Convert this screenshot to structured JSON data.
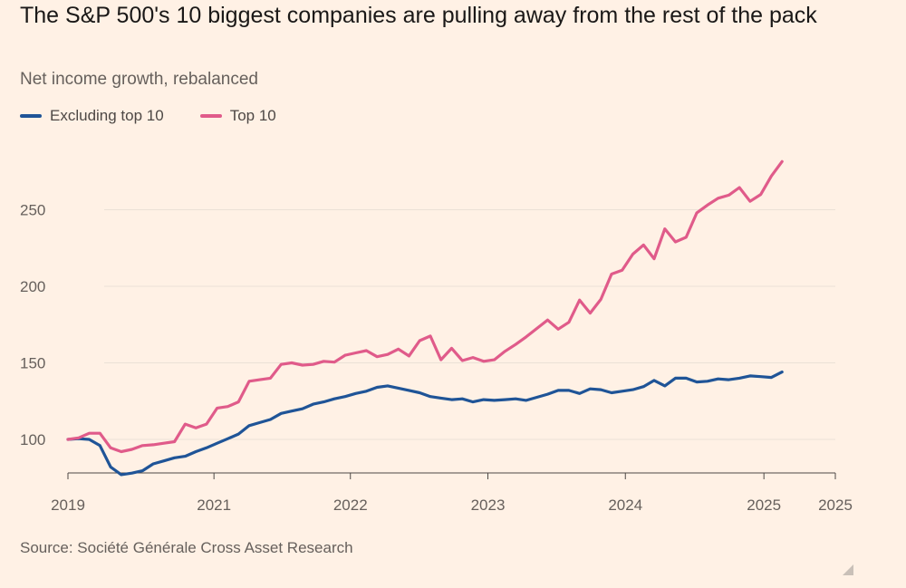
{
  "title": "The S&P 500's 10 biggest companies are pulling away from the rest of the pack",
  "subtitle": "Net income growth, rebalanced",
  "source": "Source: Société Générale Cross Asset Research",
  "colors": {
    "series_excl": "#1f5497",
    "series_top": "#e05b8a",
    "grid": "#ebe1d6",
    "axis": "#66605c"
  },
  "chart_data": {
    "type": "line",
    "title": "The S&P 500's 10 biggest companies are pulling away from the rest of the pack",
    "ylabel": "Net income growth, rebalanced",
    "xlabel": "",
    "ylim": [
      75,
      290
    ],
    "yticks": [
      100,
      150,
      200,
      250
    ],
    "xlim": [
      0,
      72
    ],
    "xticks": [
      {
        "label": "2019",
        "at": 0
      },
      {
        "label": "2021",
        "at": 13.7
      },
      {
        "label": "2022",
        "at": 26.5
      },
      {
        "label": "2023",
        "at": 39.4
      },
      {
        "label": "2024",
        "at": 52.3
      },
      {
        "label": "2025",
        "at": 65.3
      },
      {
        "label": "2025",
        "at": 72
      }
    ],
    "series": [
      {
        "name": "Excluding top 10",
        "values": [
          100,
          100.5,
          100,
          96,
          82,
          77,
          78,
          79.5,
          84,
          86,
          88,
          89,
          92,
          94.5,
          97.5,
          100.5,
          103.5,
          109,
          111,
          113,
          117,
          118.5,
          120,
          123,
          124.5,
          126.5,
          128,
          130,
          131.5,
          134,
          135,
          133.5,
          132,
          130.5,
          128,
          127,
          126,
          126.5,
          124.5,
          126,
          125.5,
          126,
          126.5,
          125.5,
          127.5,
          129.5,
          132,
          132,
          130,
          133,
          132.5,
          130.5,
          131.5,
          132.5,
          134.5,
          138.5,
          135,
          140,
          140,
          137.5,
          138,
          139.5,
          139,
          140,
          141.5,
          141,
          140.5,
          144
        ]
      },
      {
        "name": "Top 10",
        "values": [
          100,
          101,
          104,
          104,
          94.5,
          92,
          93.5,
          96,
          96.5,
          97.5,
          98.5,
          110,
          107.5,
          110,
          120.5,
          121.5,
          124.5,
          138,
          139,
          140,
          149,
          150,
          148.5,
          149,
          151,
          150.5,
          155,
          156.5,
          158,
          154,
          155.5,
          159,
          154.5,
          164.5,
          167.5,
          152,
          159.5,
          151.5,
          153.5,
          151,
          152,
          157.5,
          162,
          167,
          172.5,
          178,
          172,
          176.5,
          191,
          182.5,
          191.5,
          208,
          210.5,
          221,
          227,
          218,
          237.5,
          229,
          232,
          248,
          253,
          257.5,
          259.5,
          264.5,
          255.5,
          260,
          272,
          281.5
        ]
      }
    ]
  }
}
